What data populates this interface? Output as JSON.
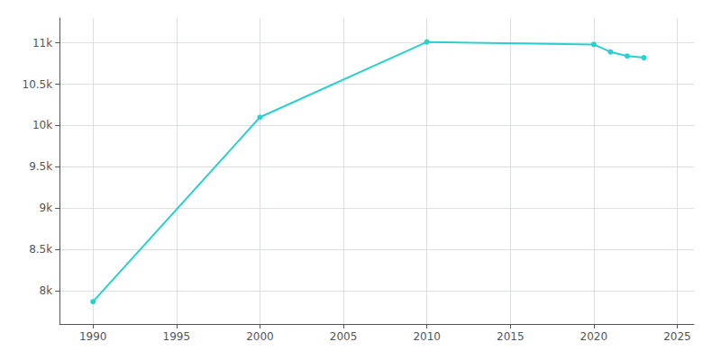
{
  "chart_data": {
    "type": "line",
    "x": [
      1990,
      2000,
      2010,
      2020,
      2021,
      2022,
      2023
    ],
    "values": [
      7870,
      10100,
      11010,
      10980,
      10890,
      10840,
      10820
    ],
    "color": "#2ACFCF",
    "marker": "circle",
    "xlim": [
      1988,
      2026
    ],
    "ylim": [
      7600,
      11300
    ],
    "xticks": [
      1990,
      1995,
      2000,
      2005,
      2010,
      2015,
      2020,
      2025
    ],
    "yticks": [
      {
        "value": 8000,
        "label": "8k"
      },
      {
        "value": 8500,
        "label": "8.5k"
      },
      {
        "value": 9000,
        "label": "9k"
      },
      {
        "value": 9500,
        "label": "9.5k"
      },
      {
        "value": 10000,
        "label": "10k"
      },
      {
        "value": 10500,
        "label": "10.5k"
      },
      {
        "value": 11000,
        "label": "11k"
      }
    ],
    "grid": true
  }
}
